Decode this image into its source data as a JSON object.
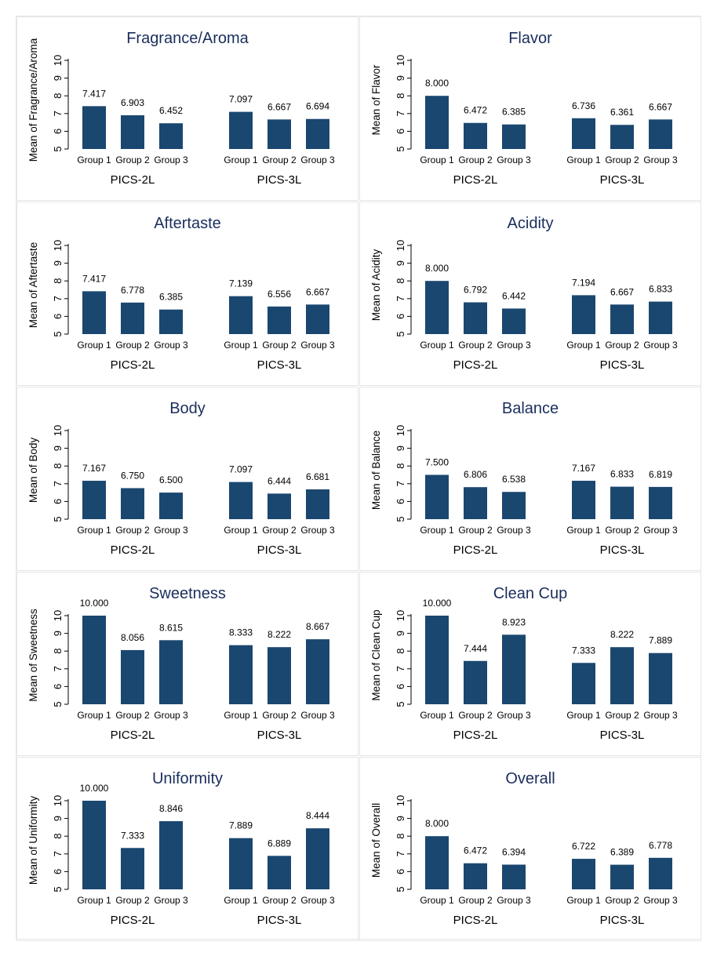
{
  "chart_data": [
    {
      "type": "bar",
      "title": "Fragrance/Aroma",
      "ylabel": "Mean of Fragrance/Aroma",
      "ylim": [
        5,
        10
      ],
      "yticks": [
        5,
        6,
        7,
        8,
        9,
        10
      ],
      "groups": [
        "Group 1",
        "Group 2",
        "Group 3"
      ],
      "panels": [
        {
          "name": "PICS-2L",
          "values": [
            7.417,
            6.903,
            6.452
          ],
          "labels": [
            "7.417",
            "6.903",
            "6.452"
          ]
        },
        {
          "name": "PICS-3L",
          "values": [
            7.097,
            6.667,
            6.694
          ],
          "labels": [
            "7.097",
            "6.667",
            "6.694"
          ]
        }
      ]
    },
    {
      "type": "bar",
      "title": "Flavor",
      "ylabel": "Mean of Flavor",
      "ylim": [
        5,
        10
      ],
      "yticks": [
        5,
        6,
        7,
        8,
        9,
        10
      ],
      "groups": [
        "Group 1",
        "Group 2",
        "Group 3"
      ],
      "panels": [
        {
          "name": "PICS-2L",
          "values": [
            8.0,
            6.472,
            6.385
          ],
          "labels": [
            "8.000",
            "6.472",
            "6.385"
          ]
        },
        {
          "name": "PICS-3L",
          "values": [
            6.736,
            6.361,
            6.667
          ],
          "labels": [
            "6.736",
            "6.361",
            "6.667"
          ]
        }
      ]
    },
    {
      "type": "bar",
      "title": "Aftertaste",
      "ylabel": "Mean of Aftertaste",
      "ylim": [
        5,
        10
      ],
      "yticks": [
        5,
        6,
        7,
        8,
        9,
        10
      ],
      "groups": [
        "Group 1",
        "Group 2",
        "Group 3"
      ],
      "panels": [
        {
          "name": "PICS-2L",
          "values": [
            7.417,
            6.778,
            6.385
          ],
          "labels": [
            "7.417",
            "6.778",
            "6.385"
          ]
        },
        {
          "name": "PICS-3L",
          "values": [
            7.139,
            6.556,
            6.667
          ],
          "labels": [
            "7.139",
            "6.556",
            "6.667"
          ]
        }
      ]
    },
    {
      "type": "bar",
      "title": "Acidity",
      "ylabel": "Mean of Acidity",
      "ylim": [
        5,
        10
      ],
      "yticks": [
        5,
        6,
        7,
        8,
        9,
        10
      ],
      "groups": [
        "Group 1",
        "Group 2",
        "Group 3"
      ],
      "panels": [
        {
          "name": "PICS-2L",
          "values": [
            8.0,
            6.792,
            6.442
          ],
          "labels": [
            "8.000",
            "6.792",
            "6.442"
          ]
        },
        {
          "name": "PICS-3L",
          "values": [
            7.194,
            6.667,
            6.833
          ],
          "labels": [
            "7.194",
            "6.667",
            "6.833"
          ]
        }
      ]
    },
    {
      "type": "bar",
      "title": "Body",
      "ylabel": "Mean of Body",
      "ylim": [
        5,
        10
      ],
      "yticks": [
        5,
        6,
        7,
        8,
        9,
        10
      ],
      "groups": [
        "Group 1",
        "Group 2",
        "Group 3"
      ],
      "panels": [
        {
          "name": "PICS-2L",
          "values": [
            7.167,
            6.75,
            6.5
          ],
          "labels": [
            "7.167",
            "6.750",
            "6.500"
          ]
        },
        {
          "name": "PICS-3L",
          "values": [
            7.097,
            6.444,
            6.681
          ],
          "labels": [
            "7.097",
            "6.444",
            "6.681"
          ]
        }
      ]
    },
    {
      "type": "bar",
      "title": "Balance",
      "ylabel": "Mean of Balance",
      "ylim": [
        5,
        10
      ],
      "yticks": [
        5,
        6,
        7,
        8,
        9,
        10
      ],
      "groups": [
        "Group 1",
        "Group 2",
        "Group 3"
      ],
      "panels": [
        {
          "name": "PICS-2L",
          "values": [
            7.5,
            6.806,
            6.538
          ],
          "labels": [
            "7.500",
            "6.806",
            "6.538"
          ]
        },
        {
          "name": "PICS-3L",
          "values": [
            7.167,
            6.833,
            6.819
          ],
          "labels": [
            "7.167",
            "6.833",
            "6.819"
          ]
        }
      ]
    },
    {
      "type": "bar",
      "title": "Sweetness",
      "ylabel": "Mean of Sweetness",
      "ylim": [
        5,
        10
      ],
      "yticks": [
        5,
        6,
        7,
        8,
        9,
        10
      ],
      "groups": [
        "Group 1",
        "Group 2",
        "Group 3"
      ],
      "panels": [
        {
          "name": "PICS-2L",
          "values": [
            10.0,
            8.056,
            8.615
          ],
          "labels": [
            "10.000",
            "8.056",
            "8.615"
          ]
        },
        {
          "name": "PICS-3L",
          "values": [
            8.333,
            8.222,
            8.667
          ],
          "labels": [
            "8.333",
            "8.222",
            "8.667"
          ]
        }
      ]
    },
    {
      "type": "bar",
      "title": "Clean Cup",
      "ylabel": "Mean of Clean Cup",
      "ylim": [
        5,
        10
      ],
      "yticks": [
        5,
        6,
        7,
        8,
        9,
        10
      ],
      "groups": [
        "Group 1",
        "Group 2",
        "Group 3"
      ],
      "panels": [
        {
          "name": "PICS-2L",
          "values": [
            10.0,
            7.444,
            8.923
          ],
          "labels": [
            "10.000",
            "7.444",
            "8.923"
          ]
        },
        {
          "name": "PICS-3L",
          "values": [
            7.333,
            8.222,
            7.889
          ],
          "labels": [
            "7.333",
            "8.222",
            "7.889"
          ]
        }
      ]
    },
    {
      "type": "bar",
      "title": "Uniformity",
      "ylabel": "Mean of Uniformity",
      "ylim": [
        5,
        10
      ],
      "yticks": [
        5,
        6,
        7,
        8,
        9,
        10
      ],
      "groups": [
        "Group 1",
        "Group 2",
        "Group 3"
      ],
      "panels": [
        {
          "name": "PICS-2L",
          "values": [
            10.0,
            7.333,
            8.846
          ],
          "labels": [
            "10.000",
            "7.333",
            "8.846"
          ]
        },
        {
          "name": "PICS-3L",
          "values": [
            7.889,
            6.889,
            8.444
          ],
          "labels": [
            "7.889",
            "6.889",
            "8.444"
          ]
        }
      ]
    },
    {
      "type": "bar",
      "title": "Overall",
      "ylabel": "Mean of Overall",
      "ylim": [
        5,
        10
      ],
      "yticks": [
        5,
        6,
        7,
        8,
        9,
        10
      ],
      "groups": [
        "Group 1",
        "Group 2",
        "Group 3"
      ],
      "panels": [
        {
          "name": "PICS-2L",
          "values": [
            8.0,
            6.472,
            6.394
          ],
          "labels": [
            "8.000",
            "6.472",
            "6.394"
          ]
        },
        {
          "name": "PICS-3L",
          "values": [
            6.722,
            6.389,
            6.778
          ],
          "labels": [
            "6.722",
            "6.389",
            "6.778"
          ]
        }
      ]
    }
  ],
  "colors": {
    "bar": "#1a476f",
    "title": "#1a2e5c"
  }
}
